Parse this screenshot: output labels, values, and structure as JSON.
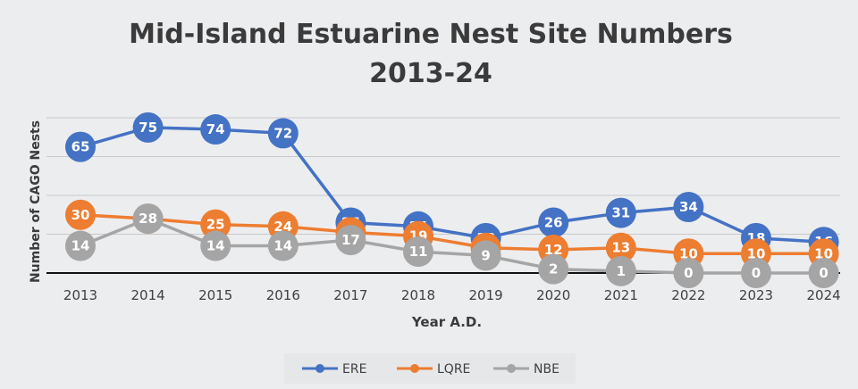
{
  "chart_data": {
    "type": "line",
    "title": "Mid-Island Estuarine Nest Site Numbers",
    "subtitle": "2013-24",
    "xlabel": "Year A.D.",
    "ylabel": "Number of CAGO Nests",
    "x": [
      "2013",
      "2014",
      "2015",
      "2016",
      "2017",
      "2018",
      "2019",
      "2020",
      "2021",
      "2022",
      "2023",
      "2024"
    ],
    "ylim": [
      0,
      80
    ],
    "grid": true,
    "legend": "bottom",
    "series": [
      {
        "name": "ERE",
        "color": "#4472c4",
        "values": [
          65,
          75,
          74,
          72,
          26,
          24,
          18,
          26,
          31,
          34,
          18,
          16
        ]
      },
      {
        "name": "LQRE",
        "color": "#ed7d31",
        "values": [
          30,
          28,
          25,
          24,
          21,
          19,
          13,
          12,
          13,
          10,
          10,
          10
        ]
      },
      {
        "name": "NBE",
        "color": "#a5a5a5",
        "values": [
          14,
          28,
          14,
          14,
          17,
          11,
          9,
          2,
          1,
          0,
          0,
          0
        ]
      }
    ]
  }
}
